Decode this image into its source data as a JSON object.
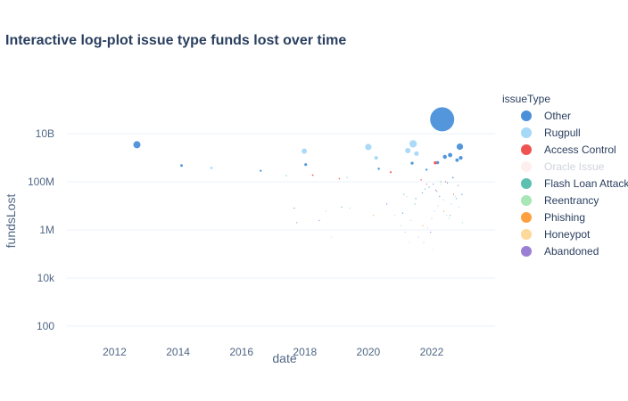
{
  "chart_data": {
    "type": "scatter",
    "title": "Interactive log-plot issue type funds lost over time",
    "xlabel": "date",
    "ylabel": "fundsLost",
    "log_y": true,
    "xlim": [
      "2010-07-01",
      "2023-12-31"
    ],
    "ylim": [
      30,
      200000000000
    ],
    "x_ticks": [
      {
        "value": "2012-01-01",
        "label": "2012"
      },
      {
        "value": "2014-01-01",
        "label": "2014"
      },
      {
        "value": "2016-01-01",
        "label": "2016"
      },
      {
        "value": "2018-01-01",
        "label": "2018"
      },
      {
        "value": "2020-01-01",
        "label": "2020"
      },
      {
        "value": "2022-01-01",
        "label": "2022"
      }
    ],
    "y_ticks": [
      {
        "value": 100,
        "label": "100"
      },
      {
        "value": 10000,
        "label": "10k"
      },
      {
        "value": 1000000,
        "label": "1M"
      },
      {
        "value": 100000000,
        "label": "100M"
      },
      {
        "value": 10000000000,
        "label": "10B"
      }
    ],
    "grid": true,
    "legend": {
      "title": "issueType",
      "placement": "right"
    },
    "series": [
      {
        "name": "Other",
        "color": "#4a90d9",
        "hidden": false,
        "points": [
          {
            "x": "2012-09-15",
            "y": 3500000000
          },
          {
            "x": "2014-02-10",
            "y": 480000000
          },
          {
            "x": "2016-08-10",
            "y": 290000000
          },
          {
            "x": "2018-01-10",
            "y": 520000000
          },
          {
            "x": "2020-05-01",
            "y": 350000000
          },
          {
            "x": "2021-05-20",
            "y": 600000000
          },
          {
            "x": "2021-11-01",
            "y": 320000000
          },
          {
            "x": "2022-03-10",
            "y": 630000000
          },
          {
            "x": "2022-05-01",
            "y": 40000000000
          },
          {
            "x": "2022-06-01",
            "y": 1100000000
          },
          {
            "x": "2022-08-01",
            "y": 1300000000
          },
          {
            "x": "2022-10-20",
            "y": 800000000
          },
          {
            "x": "2022-11-20",
            "y": 2900000000
          },
          {
            "x": "2022-12-01",
            "y": 1000000000
          },
          {
            "x": "2017-09-01",
            "y": 8000000
          },
          {
            "x": "2018-06-15",
            "y": 2500000
          },
          {
            "x": "2019-03-01",
            "y": 9000000
          },
          {
            "x": "2020-08-01",
            "y": 12000000
          },
          {
            "x": "2021-02-01",
            "y": 5000000
          },
          {
            "x": "2021-07-01",
            "y": 20000000
          },
          {
            "x": "2021-09-15",
            "y": 35000000
          },
          {
            "x": "2021-12-01",
            "y": 60000000
          },
          {
            "x": "2022-01-20",
            "y": 80000000
          },
          {
            "x": "2022-02-15",
            "y": 45000000
          },
          {
            "x": "2022-04-01",
            "y": 25000000
          },
          {
            "x": "2022-07-01",
            "y": 90000000
          },
          {
            "x": "2022-09-01",
            "y": 150000000
          },
          {
            "x": "2022-11-01",
            "y": 70000000
          },
          {
            "x": "2022-12-15",
            "y": 30000000
          }
        ]
      },
      {
        "name": "Rugpull",
        "color": "#a6d8f8",
        "hidden": false,
        "points": [
          {
            "x": "2015-01-20",
            "y": 380000000
          },
          {
            "x": "2017-12-25",
            "y": 1900000000
          },
          {
            "x": "2020-01-01",
            "y": 2800000000
          },
          {
            "x": "2020-04-01",
            "y": 1000000000
          },
          {
            "x": "2021-04-01",
            "y": 2000000000
          },
          {
            "x": "2021-06-01",
            "y": 3800000000
          },
          {
            "x": "2021-07-10",
            "y": 1500000000
          },
          {
            "x": "2017-06-01",
            "y": 180000000
          },
          {
            "x": "2018-09-01",
            "y": 6000000
          },
          {
            "x": "2019-05-01",
            "y": 150000000
          },
          {
            "x": "2020-11-01",
            "y": 4000000
          },
          {
            "x": "2021-01-15",
            "y": 1500000
          },
          {
            "x": "2021-03-01",
            "y": 800000
          },
          {
            "x": "2021-05-01",
            "y": 2500000
          },
          {
            "x": "2021-08-01",
            "y": 500000
          },
          {
            "x": "2021-10-01",
            "y": 300000
          },
          {
            "x": "2021-11-15",
            "y": 1200000
          },
          {
            "x": "2022-01-01",
            "y": 3000000
          },
          {
            "x": "2022-02-01",
            "y": 6000000
          },
          {
            "x": "2022-03-15",
            "y": 10000000
          },
          {
            "x": "2022-05-15",
            "y": 18000000
          },
          {
            "x": "2022-06-20",
            "y": 4000000
          },
          {
            "x": "2022-08-15",
            "y": 12000000
          },
          {
            "x": "2022-10-01",
            "y": 25000000
          },
          {
            "x": "2022-11-10",
            "y": 9000000
          },
          {
            "x": "2022-12-20",
            "y": 2000000
          }
        ]
      },
      {
        "name": "Access Control",
        "color": "#ef5350",
        "hidden": false,
        "points": [
          {
            "x": "2018-04-01",
            "y": 190000000
          },
          {
            "x": "2019-02-01",
            "y": 135000000
          },
          {
            "x": "2020-09-15",
            "y": 250000000
          },
          {
            "x": "2022-02-10",
            "y": 620000000
          },
          {
            "x": "2021-09-01",
            "y": 120000000
          },
          {
            "x": "2021-11-01",
            "y": 80000000
          },
          {
            "x": "2022-03-01",
            "y": 40000000
          },
          {
            "x": "2022-06-10",
            "y": 100000000
          },
          {
            "x": "2022-09-10",
            "y": 30000000
          }
        ]
      },
      {
        "name": "Oracle Issue",
        "color": "#fde0dd",
        "hidden": true,
        "points": []
      },
      {
        "name": "Flash Loan Attack",
        "color": "#5bc0b0",
        "hidden": false,
        "points": [
          {
            "x": "2021-02-15",
            "y": 30000000
          },
          {
            "x": "2021-06-20",
            "y": 12000000
          },
          {
            "x": "2021-10-15",
            "y": 50000000
          },
          {
            "x": "2022-04-15",
            "y": 100000000
          },
          {
            "x": "2022-10-10",
            "y": 20000000
          }
        ]
      },
      {
        "name": "Reentrancy",
        "color": "#a8e6b6",
        "hidden": false,
        "points": [
          {
            "x": "2019-06-01",
            "y": 8000000
          },
          {
            "x": "2021-03-20",
            "y": 25000000
          },
          {
            "x": "2022-04-20",
            "y": 80000000
          },
          {
            "x": "2022-07-20",
            "y": 3000000
          }
        ]
      },
      {
        "name": "Phishing",
        "color": "#ffa040",
        "hidden": false,
        "points": [
          {
            "x": "2020-03-01",
            "y": 4000000
          },
          {
            "x": "2021-09-20",
            "y": 1500000
          },
          {
            "x": "2022-05-20",
            "y": 6000000
          }
        ]
      },
      {
        "name": "Honeypot",
        "color": "#fdd99b",
        "hidden": false,
        "points": [
          {
            "x": "2018-11-01",
            "y": 500000
          },
          {
            "x": "2021-04-20",
            "y": 300000
          },
          {
            "x": "2022-01-10",
            "y": 150000
          }
        ]
      },
      {
        "name": "Abandoned",
        "color": "#9b7fd4",
        "hidden": false,
        "points": [
          {
            "x": "2017-10-01",
            "y": 2000000
          },
          {
            "x": "2021-12-20",
            "y": 800000
          },
          {
            "x": "2022-08-01",
            "y": 4000000
          }
        ]
      }
    ]
  }
}
